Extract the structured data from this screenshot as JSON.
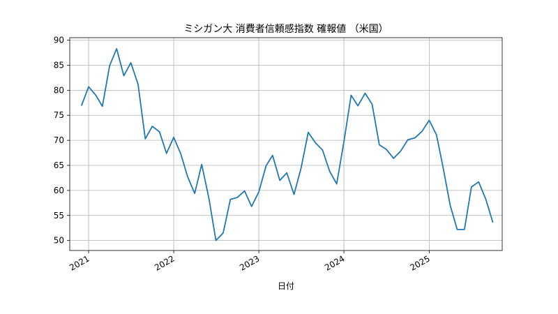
{
  "chart_data": {
    "type": "line",
    "title": "ミシガン大 消費者信頼感指数 確報値 （米国）",
    "xlabel": "日付",
    "ylabel": "",
    "ylim": [
      48,
      90.5
    ],
    "xlim": [
      "2020-10-12",
      "2025-11-10"
    ],
    "grid": true,
    "legend": "none",
    "y_ticks": [
      50,
      55,
      60,
      65,
      70,
      75,
      80,
      85,
      90
    ],
    "x_ticks": [
      {
        "label": "2021",
        "date": "2021-01-01"
      },
      {
        "label": "2022",
        "date": "2022-01-01"
      },
      {
        "label": "2023",
        "date": "2023-01-01"
      },
      {
        "label": "2024",
        "date": "2024-01-01"
      },
      {
        "label": "2025",
        "date": "2025-01-01"
      }
    ],
    "line_color": "#1f77b4",
    "series": [
      {
        "x": [
          "2020-12-01",
          "2021-01-01",
          "2021-02-01",
          "2021-03-01",
          "2021-04-01",
          "2021-05-01",
          "2021-06-01",
          "2021-07-01",
          "2021-08-01",
          "2021-09-01",
          "2021-10-01",
          "2021-11-01",
          "2021-12-01",
          "2022-01-01",
          "2022-02-01",
          "2022-03-01",
          "2022-04-01",
          "2022-05-01",
          "2022-06-01",
          "2022-07-01",
          "2022-08-01",
          "2022-09-01",
          "2022-10-01",
          "2022-11-01",
          "2022-12-01",
          "2023-01-01",
          "2023-02-01",
          "2023-03-01",
          "2023-04-01",
          "2023-05-01",
          "2023-06-01",
          "2023-07-01",
          "2023-08-01",
          "2023-09-01",
          "2023-10-01",
          "2023-11-01",
          "2023-12-01",
          "2024-01-01",
          "2024-02-01",
          "2024-03-01",
          "2024-04-01",
          "2024-05-01",
          "2024-06-01",
          "2024-07-01",
          "2024-08-01",
          "2024-09-01",
          "2024-10-01",
          "2024-11-01",
          "2024-12-01",
          "2025-01-01",
          "2025-02-01",
          "2025-03-01",
          "2025-04-01",
          "2025-05-01",
          "2025-06-01",
          "2025-07-01",
          "2025-08-01",
          "2025-09-01",
          "2025-10-01"
        ],
        "values": [
          76.9,
          80.7,
          79.0,
          76.8,
          84.9,
          88.3,
          82.9,
          85.5,
          81.2,
          70.3,
          72.8,
          71.7,
          67.4,
          70.6,
          67.2,
          62.8,
          59.4,
          65.2,
          58.4,
          50.0,
          51.5,
          58.2,
          58.6,
          59.9,
          56.8,
          59.7,
          64.9,
          67.0,
          62.0,
          63.5,
          59.2,
          64.4,
          71.6,
          69.5,
          68.1,
          63.8,
          61.3,
          69.7,
          79.0,
          76.9,
          79.4,
          77.2,
          69.1,
          68.2,
          66.4,
          67.9,
          70.1,
          70.5,
          71.8,
          74.0,
          71.1,
          64.7,
          57.0,
          52.2,
          52.2,
          60.7,
          61.7,
          58.2,
          53.6
        ]
      }
    ]
  }
}
